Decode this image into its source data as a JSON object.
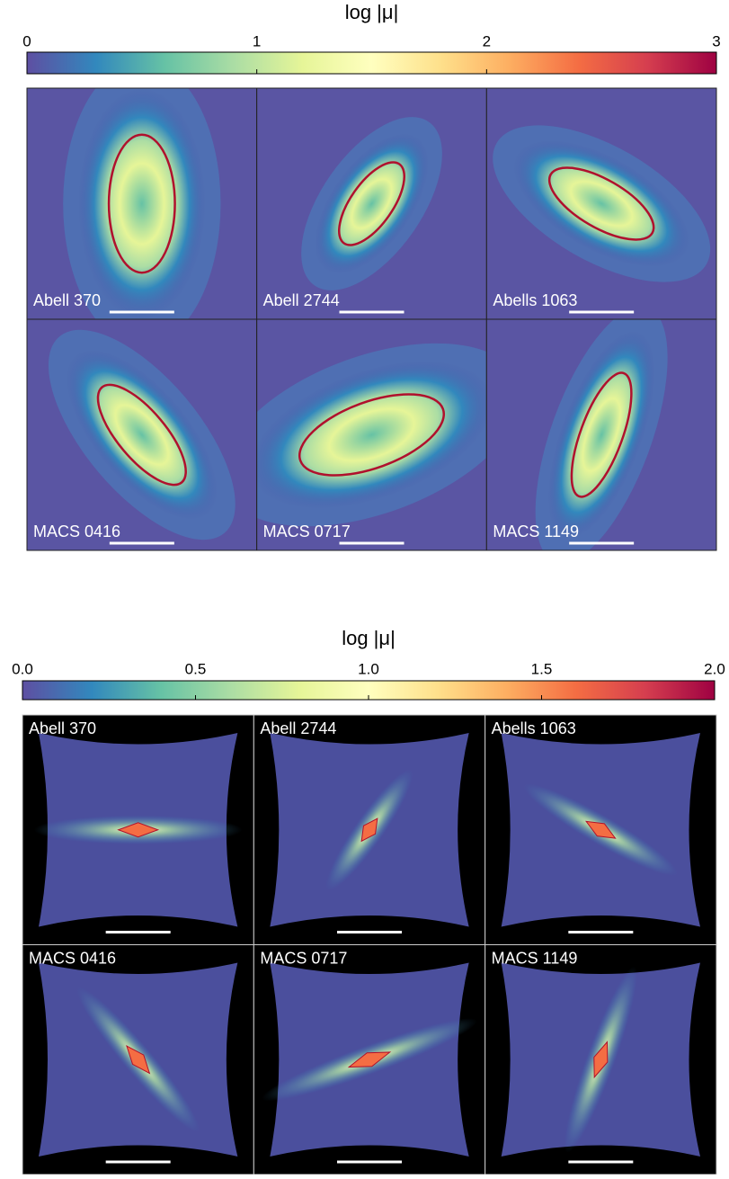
{
  "figures": [
    {
      "colorbar": {
        "label": "log |μ|",
        "lim": [
          0,
          3
        ],
        "ticks": [
          0,
          1,
          2,
          3
        ]
      },
      "panels": [
        {
          "label": "Abell 370"
        },
        {
          "label": "Abell 2744"
        },
        {
          "label": "Abells 1063"
        },
        {
          "label": "MACS 0416"
        },
        {
          "label": "MACS 0717"
        },
        {
          "label": "MACS 1149"
        }
      ]
    },
    {
      "colorbar": {
        "label": "log |μ|",
        "lim": [
          0,
          2
        ],
        "ticks": [
          {
            "value": 0,
            "label": "0.0"
          },
          {
            "value": 0.5,
            "label": "0.5"
          },
          {
            "value": 1,
            "label": "1.0"
          },
          {
            "value": 1.5,
            "label": "1.5"
          },
          {
            "value": 2,
            "label": "2.0"
          }
        ]
      },
      "panels": [
        {
          "label": "Abell 370"
        },
        {
          "label": "Abell 2744"
        },
        {
          "label": "Abells 1063"
        },
        {
          "label": "MACS 0416"
        },
        {
          "label": "MACS 0717"
        },
        {
          "label": "MACS 1149"
        }
      ]
    }
  ]
}
